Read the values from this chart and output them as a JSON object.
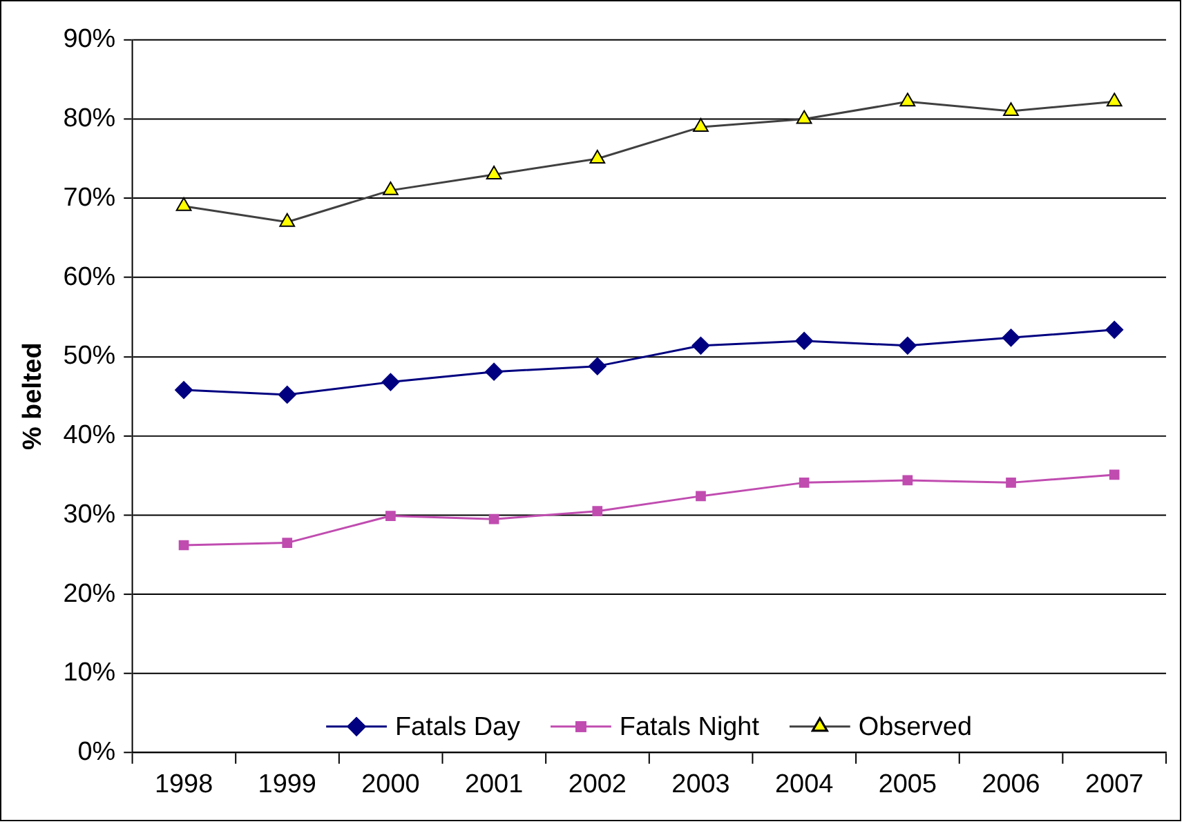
{
  "chart_data": {
    "type": "line",
    "ylabel": "% belted",
    "categories": [
      "1998",
      "1999",
      "2000",
      "2001",
      "2002",
      "2003",
      "2004",
      "2005",
      "2006",
      "2007"
    ],
    "series": [
      {
        "name": "Fatals Day",
        "color": "#000080",
        "marker": "diamond",
        "values": [
          45.8,
          45.2,
          46.8,
          48.1,
          48.8,
          51.4,
          52.0,
          51.4,
          52.4,
          53.4
        ]
      },
      {
        "name": "Fatals Night",
        "color": "#c04cb0",
        "marker": "square",
        "values": [
          26.2,
          26.5,
          29.9,
          29.5,
          30.5,
          32.4,
          34.1,
          34.4,
          34.1,
          35.1
        ]
      },
      {
        "name": "Observed",
        "color": "#404040",
        "marker": "triangle",
        "colors": [
          "#ffff00",
          "#ffff00",
          "#ffff00",
          "#ffff00",
          "#ffff00",
          "#ffff00",
          "#ffff00",
          "#ffff00",
          "#ffff00",
          "#ffff00"
        ],
        "values": [
          69,
          67,
          71,
          73,
          75,
          79,
          80,
          82.2,
          81,
          82.2
        ]
      }
    ],
    "ylim": [
      0,
      90
    ],
    "yticks": [
      {
        "value": 0,
        "label": "0%"
      },
      {
        "value": 10,
        "label": "10%"
      },
      {
        "value": 20,
        "label": "20%"
      },
      {
        "value": 30,
        "label": "30%"
      },
      {
        "value": 40,
        "label": "40%"
      },
      {
        "value": 50,
        "label": "50%"
      },
      {
        "value": 60,
        "label": "60%"
      },
      {
        "value": 70,
        "label": "70%"
      },
      {
        "value": 80,
        "label": "80%"
      },
      {
        "value": 90,
        "label": "90%"
      }
    ],
    "grid": "y",
    "legend": "bottom",
    "line_style": "solid"
  }
}
